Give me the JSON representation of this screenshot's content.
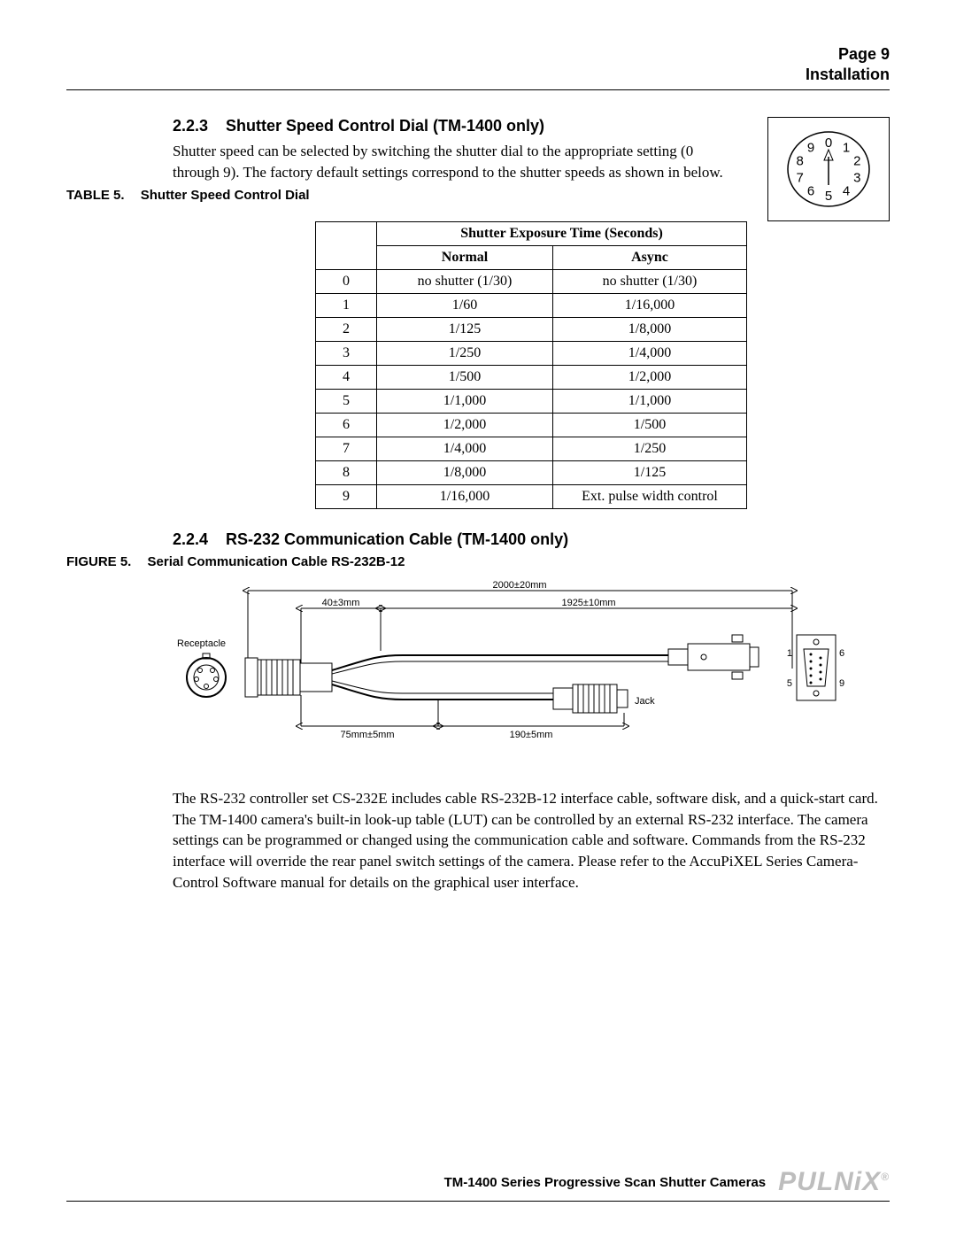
{
  "colors": {
    "text": "#000000",
    "bg": "#ffffff",
    "logo_gray": "#bdbdbd",
    "rule": "#000000"
  },
  "header": {
    "page_label": "Page 9",
    "section_label": "Installation"
  },
  "section_223": {
    "num": "2.2.3",
    "title": "Shutter Speed Control Dial (TM-1400 only)",
    "paragraph": "Shutter speed can be selected by switching the shutter dial to the appropriate setting (0 through 9). The factory default settings correspond to the shutter speeds as shown in below."
  },
  "dial": {
    "type": "rotary-dial",
    "digits": [
      "0",
      "1",
      "2",
      "3",
      "4",
      "5",
      "6",
      "7",
      "8",
      "9"
    ],
    "fontsize": 15
  },
  "table5": {
    "caption_label": "TABLE 5.",
    "caption_text": "Shutter Speed Control Dial",
    "header_span": "Shutter Exposure Time (Seconds)",
    "col_normal": "Normal",
    "col_async": "Async",
    "rows": [
      {
        "idx": "0",
        "normal": "no shutter (1/30)",
        "async": "no shutter (1/30)"
      },
      {
        "idx": "1",
        "normal": "1/60",
        "async": "1/16,000"
      },
      {
        "idx": "2",
        "normal": "1/125",
        "async": "1/8,000"
      },
      {
        "idx": "3",
        "normal": "1/250",
        "async": "1/4,000"
      },
      {
        "idx": "4",
        "normal": "1/500",
        "async": "1/2,000"
      },
      {
        "idx": "5",
        "normal": "1/1,000",
        "async": "1/1,000"
      },
      {
        "idx": "6",
        "normal": "1/2,000",
        "async": "1/500"
      },
      {
        "idx": "7",
        "normal": "1/4,000",
        "async": "1/250"
      },
      {
        "idx": "8",
        "normal": "1/8,000",
        "async": "1/125"
      },
      {
        "idx": "9",
        "normal": "1/16,000",
        "async": "Ext. pulse width control"
      }
    ]
  },
  "section_224": {
    "num": "2.2.4",
    "title": "RS-232 Communication Cable (TM-1400 only)"
  },
  "figure5": {
    "caption_label": "FIGURE 5.",
    "caption_text": "Serial Communication Cable RS-232B-12",
    "labels": {
      "total": "2000±20mm",
      "left_short": "40±3mm",
      "right_long": "1925±10mm",
      "receptacle": "Receptacle",
      "jack": "Jack",
      "bottom_left": "75mm±5mm",
      "bottom_mid": "190±5mm",
      "pin1": "1",
      "pin5": "5",
      "pin6": "6",
      "pin9": "9"
    },
    "style": {
      "stroke": "#000000",
      "stroke_width": 1
    }
  },
  "rs232_paragraph": "The RS-232 controller set CS-232E includes cable RS-232B-12 interface cable, software disk, and a quick-start card. The TM-1400 camera's built-in look-up table (LUT) can be controlled by an external RS-232 interface. The camera settings can be programmed or changed using the communication cable and software. Commands from the RS-232 interface will override the rear panel switch settings of the camera. Please refer to the AccuPiXEL Series Camera-Control Software manual for details on the graphical user interface.",
  "footer": {
    "text": "TM-1400 Series Progressive Scan Shutter Cameras",
    "logo": "PULNiX",
    "reg": "®"
  }
}
